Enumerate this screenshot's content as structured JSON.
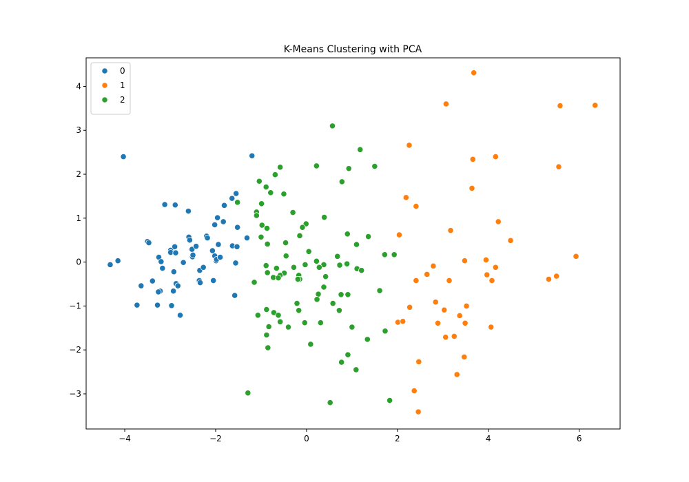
{
  "chart_data": {
    "type": "scatter",
    "title": "K-Means Clustering with PCA",
    "xlabel": "",
    "ylabel": "",
    "xlim": [
      -4.85,
      6.9
    ],
    "ylim": [
      -3.8,
      4.65
    ],
    "xticks": [
      -4,
      -2,
      0,
      2,
      4,
      6
    ],
    "yticks": [
      -3,
      -2,
      -1,
      0,
      1,
      2,
      3,
      4
    ],
    "grid": false,
    "legend_position": "top-left",
    "series": [
      {
        "name": "0",
        "color": "#1f77b4",
        "points": [
          [
            -4.03,
            2.4
          ],
          [
            -4.32,
            -0.06
          ],
          [
            -4.15,
            0.03
          ],
          [
            -3.73,
            -0.98
          ],
          [
            -3.64,
            -0.54
          ],
          [
            -3.5,
            0.47
          ],
          [
            -3.47,
            0.44
          ],
          [
            -3.39,
            -0.43
          ],
          [
            -3.28,
            -0.98
          ],
          [
            -3.25,
            0.11
          ],
          [
            -3.2,
            0.01
          ],
          [
            -3.17,
            -0.14
          ],
          [
            -3.22,
            -0.66
          ],
          [
            -3.26,
            -0.68
          ],
          [
            -3.12,
            1.31
          ],
          [
            -2.99,
            0.27
          ],
          [
            -2.99,
            0.22
          ],
          [
            -2.97,
            -0.99
          ],
          [
            -2.93,
            -0.66
          ],
          [
            -2.92,
            -0.22
          ],
          [
            -2.9,
            0.35
          ],
          [
            -2.88,
            0.21
          ],
          [
            -2.89,
            1.3
          ],
          [
            -2.87,
            -0.49
          ],
          [
            -2.83,
            -0.54
          ],
          [
            -2.78,
            -1.21
          ],
          [
            -2.71,
            -0.01
          ],
          [
            -2.59,
            0.57
          ],
          [
            -2.57,
            0.5
          ],
          [
            -2.6,
            1.16
          ],
          [
            -2.52,
            0.29
          ],
          [
            -2.51,
            0.12
          ],
          [
            -2.5,
            0.16
          ],
          [
            -2.43,
            0.36
          ],
          [
            -2.36,
            -0.42
          ],
          [
            -2.34,
            -0.47
          ],
          [
            -2.35,
            -0.19
          ],
          [
            -2.27,
            -0.12
          ],
          [
            -2.2,
            0.59
          ],
          [
            -2.18,
            0.55
          ],
          [
            -2.07,
            0.26
          ],
          [
            -2.05,
            -0.42
          ],
          [
            -2.02,
            0.85
          ],
          [
            -2.02,
            0.14
          ],
          [
            -1.99,
            0.03
          ],
          [
            -1.98,
            0.06
          ],
          [
            -1.96,
            1.01
          ],
          [
            -1.94,
            0.4
          ],
          [
            -1.9,
            0.11
          ],
          [
            -1.83,
            0.92
          ],
          [
            -1.81,
            1.29
          ],
          [
            -1.64,
            1.45
          ],
          [
            -1.63,
            0.37
          ],
          [
            -1.58,
            -0.76
          ],
          [
            -1.56,
            -0.02
          ],
          [
            -1.55,
            1.56
          ],
          [
            -1.52,
            0.79
          ],
          [
            -1.53,
            0.35
          ],
          [
            -1.31,
            0.55
          ],
          [
            -1.2,
            2.42
          ]
        ]
      },
      {
        "name": "1",
        "color": "#ff7f0e",
        "points": [
          [
            3.68,
            4.31
          ],
          [
            3.07,
            3.6
          ],
          [
            5.58,
            3.56
          ],
          [
            6.35,
            3.57
          ],
          [
            2.26,
            2.66
          ],
          [
            3.66,
            2.34
          ],
          [
            4.16,
            2.4
          ],
          [
            5.55,
            2.17
          ],
          [
            3.64,
            1.68
          ],
          [
            2.19,
            1.47
          ],
          [
            2.41,
            1.27
          ],
          [
            4.22,
            0.92
          ],
          [
            3.17,
            0.72
          ],
          [
            2.04,
            0.62
          ],
          [
            4.49,
            0.49
          ],
          [
            5.93,
            0.13
          ],
          [
            3.48,
            0.03
          ],
          [
            3.95,
            0.05
          ],
          [
            2.79,
            -0.09
          ],
          [
            4.16,
            -0.12
          ],
          [
            2.65,
            -0.28
          ],
          [
            3.97,
            -0.29
          ],
          [
            2.41,
            -0.42
          ],
          [
            3.14,
            -0.42
          ],
          [
            4.08,
            -0.42
          ],
          [
            5.33,
            -0.39
          ],
          [
            5.5,
            -0.32
          ],
          [
            2.84,
            -0.91
          ],
          [
            3.52,
            -1.0
          ],
          [
            2.27,
            -1.03
          ],
          [
            3.03,
            -1.09
          ],
          [
            3.37,
            -1.22
          ],
          [
            2.01,
            -1.37
          ],
          [
            2.12,
            -1.35
          ],
          [
            2.89,
            -1.39
          ],
          [
            3.49,
            -1.39
          ],
          [
            4.06,
            -1.48
          ],
          [
            3.25,
            -1.69
          ],
          [
            3.06,
            -1.71
          ],
          [
            3.47,
            -2.16
          ],
          [
            2.47,
            -2.27
          ],
          [
            3.31,
            -2.56
          ],
          [
            2.37,
            -2.93
          ],
          [
            2.46,
            -3.41
          ]
        ]
      },
      {
        "name": "2",
        "color": "#2ca02c",
        "points": [
          [
            0.57,
            3.1
          ],
          [
            1.18,
            2.56
          ],
          [
            0.22,
            2.19
          ],
          [
            1.5,
            2.18
          ],
          [
            -0.58,
            2.16
          ],
          [
            0.93,
            2.13
          ],
          [
            -0.69,
            1.99
          ],
          [
            -1.04,
            1.84
          ],
          [
            0.78,
            1.83
          ],
          [
            -0.89,
            1.71
          ],
          [
            -0.79,
            1.58
          ],
          [
            -0.5,
            1.55
          ],
          [
            -1.52,
            1.36
          ],
          [
            -0.99,
            1.33
          ],
          [
            -1.1,
            1.14
          ],
          [
            -0.3,
            1.13
          ],
          [
            -1.1,
            1.06
          ],
          [
            0.39,
            1.02
          ],
          [
            -0.98,
            0.84
          ],
          [
            -0.01,
            0.87
          ],
          [
            -0.87,
            0.77
          ],
          [
            -0.09,
            0.79
          ],
          [
            0.9,
            0.64
          ],
          [
            1.36,
            0.58
          ],
          [
            -0.15,
            0.6
          ],
          [
            -1.0,
            0.57
          ],
          [
            -0.46,
            0.44
          ],
          [
            -0.86,
            0.41
          ],
          [
            1.1,
            0.4
          ],
          [
            0.05,
            0.24
          ],
          [
            1.72,
            0.17
          ],
          [
            1.93,
            0.17
          ],
          [
            0.68,
            0.13
          ],
          [
            -0.45,
            0.14
          ],
          [
            0.22,
            0.02
          ],
          [
            0.38,
            -0.06
          ],
          [
            0.73,
            -0.07
          ],
          [
            -0.89,
            -0.08
          ],
          [
            0.89,
            -0.04
          ],
          [
            -0.03,
            -0.06
          ],
          [
            -0.28,
            -0.12
          ],
          [
            -0.66,
            -0.14
          ],
          [
            0.28,
            -0.12
          ],
          [
            1.11,
            -0.15
          ],
          [
            1.21,
            -0.19
          ],
          [
            -0.86,
            -0.24
          ],
          [
            -0.49,
            -0.25
          ],
          [
            -0.58,
            -0.3
          ],
          [
            -0.17,
            -0.3
          ],
          [
            0.42,
            -0.33
          ],
          [
            -0.73,
            -0.35
          ],
          [
            -0.62,
            -0.36
          ],
          [
            -0.15,
            -0.39
          ],
          [
            -0.19,
            -0.39
          ],
          [
            -1.15,
            -0.46
          ],
          [
            0.38,
            -0.57
          ],
          [
            1.61,
            -0.65
          ],
          [
            0.26,
            -0.73
          ],
          [
            0.76,
            -0.74
          ],
          [
            0.91,
            -0.74
          ],
          [
            0.23,
            -0.85
          ],
          [
            0.58,
            -0.94
          ],
          [
            -0.21,
            -0.94
          ],
          [
            -0.17,
            -1.1
          ],
          [
            -0.88,
            -1.08
          ],
          [
            -0.72,
            -1.15
          ],
          [
            0.72,
            -1.1
          ],
          [
            -1.07,
            -1.21
          ],
          [
            -0.62,
            -1.21
          ],
          [
            -0.58,
            -1.36
          ],
          [
            -0.04,
            -1.38
          ],
          [
            0.31,
            -1.38
          ],
          [
            -0.4,
            -1.48
          ],
          [
            -0.83,
            -1.47
          ],
          [
            1.0,
            -1.48
          ],
          [
            -0.88,
            -1.66
          ],
          [
            1.73,
            -1.57
          ],
          [
            1.34,
            -1.76
          ],
          [
            0.09,
            -1.87
          ],
          [
            -0.85,
            -1.95
          ],
          [
            0.91,
            -2.11
          ],
          [
            0.77,
            -2.28
          ],
          [
            1.09,
            -2.45
          ],
          [
            -1.29,
            -2.98
          ],
          [
            1.83,
            -3.15
          ],
          [
            0.52,
            -3.2
          ]
        ]
      }
    ]
  }
}
